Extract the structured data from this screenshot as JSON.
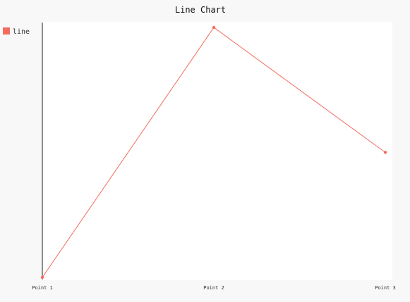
{
  "chart_data": {
    "type": "line",
    "title": "Line Chart",
    "categories": [
      "Point 1",
      "Point 2",
      "Point 3"
    ],
    "series": [
      {
        "name": "line",
        "values": [
          0,
          100,
          50
        ],
        "color": "#f26b5f"
      }
    ],
    "ylim": [
      0,
      100
    ],
    "xlabel": "",
    "ylabel": "",
    "grid": false,
    "legend_position": "top-left",
    "colors": {
      "plot_background": "#ffffff",
      "page_background": "#f8f8f8",
      "axis": "#222222"
    }
  }
}
